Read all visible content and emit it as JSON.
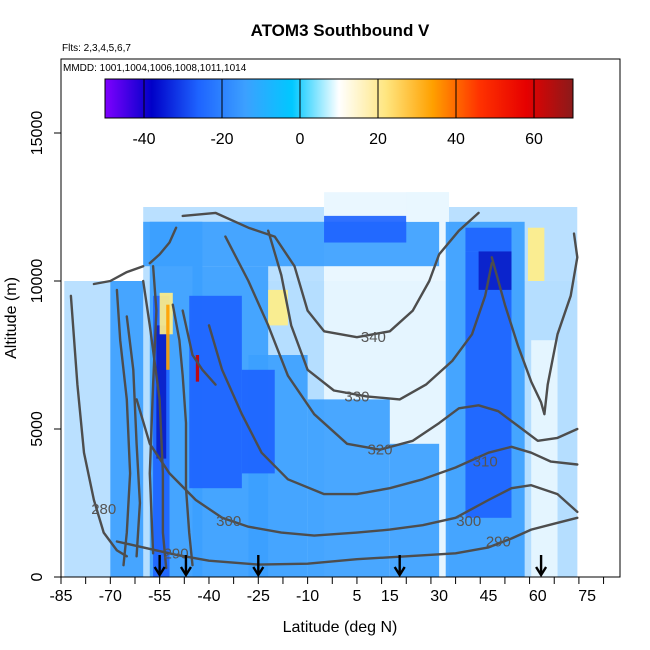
{
  "chart_data": {
    "type": "heatmap",
    "title": "ATOM3 Southbound V",
    "subtitle_lines": [
      "Flts: 2,3,4,5,6,7",
      "MMDD: 1001,1004,1006,1008,1011,1014"
    ],
    "xlabel": "Latitude (deg N)",
    "ylabel": "Altitude (m)",
    "xlim": [
      -85,
      85
    ],
    "ylim": [
      0,
      17500
    ],
    "x_ticks": [
      -85,
      -70,
      -55,
      -40,
      -25,
      -10,
      5,
      15,
      30,
      45,
      60,
      75
    ],
    "y_ticks": [
      0,
      5000,
      10000,
      15000
    ],
    "colorbar": {
      "range": [
        -50,
        70
      ],
      "ticks": [
        -40,
        -20,
        0,
        20,
        40,
        60
      ],
      "colors": [
        "#7f00ff",
        "#0000c8",
        "#1e64ff",
        "#3ca0ff",
        "#00c8ff",
        "#ffffff",
        "#ffe680",
        "#ffa000",
        "#ff3200",
        "#e60000",
        "#8b1a1a"
      ]
    },
    "contour_labels": [
      {
        "text": "340",
        "x": 10,
        "y": 8100
      },
      {
        "text": "330",
        "x": 5,
        "y": 6100
      },
      {
        "text": "320",
        "x": 12,
        "y": 4300
      },
      {
        "text": "310",
        "x": 44,
        "y": 3900
      },
      {
        "text": "300",
        "x": 39,
        "y": 1900
      },
      {
        "text": "290",
        "x": 48,
        "y": 1200
      },
      {
        "text": "280",
        "x": -72,
        "y": 2300
      },
      {
        "text": "300",
        "x": -34,
        "y": 1900
      },
      {
        "text": "290",
        "x": -50,
        "y": 800
      }
    ],
    "flight_markers_lat": [
      -55,
      -47,
      -25,
      18,
      61
    ],
    "contours": [
      {
        "label": "280",
        "points": [
          [
            -82,
            9500
          ],
          [
            -80,
            6500
          ],
          [
            -78,
            4200
          ],
          [
            -75,
            2600
          ],
          [
            -72,
            1500
          ],
          [
            -68,
            900
          ],
          [
            -65,
            700
          ]
        ]
      },
      {
        "label": "290",
        "points": [
          [
            -68,
            1200
          ],
          [
            -60,
            1000
          ],
          [
            -50,
            750
          ],
          [
            -40,
            550
          ],
          [
            -25,
            420
          ],
          [
            -10,
            450
          ],
          [
            5,
            600
          ],
          [
            20,
            700
          ],
          [
            35,
            800
          ],
          [
            45,
            1000
          ],
          [
            52,
            1300
          ],
          [
            58,
            1600
          ],
          [
            65,
            1800
          ],
          [
            72,
            2000
          ]
        ]
      },
      {
        "label": "300",
        "points": [
          [
            -62,
            6000
          ],
          [
            -58,
            4500
          ],
          [
            -52,
            3500
          ],
          [
            -44,
            2600
          ],
          [
            -36,
            2000
          ],
          [
            -28,
            1700
          ],
          [
            -18,
            1500
          ],
          [
            -8,
            1400
          ],
          [
            5,
            1500
          ],
          [
            15,
            1600
          ],
          [
            25,
            1750
          ],
          [
            35,
            2000
          ],
          [
            45,
            2600
          ],
          [
            52,
            3000
          ],
          [
            58,
            3100
          ],
          [
            66,
            2800
          ],
          [
            72,
            2200
          ]
        ]
      },
      {
        "label": "310",
        "points": [
          [
            -40,
            8500
          ],
          [
            -36,
            7000
          ],
          [
            -30,
            5500
          ],
          [
            -24,
            4200
          ],
          [
            -16,
            3300
          ],
          [
            -5,
            2800
          ],
          [
            5,
            2800
          ],
          [
            15,
            3000
          ],
          [
            25,
            3300
          ],
          [
            35,
            3700
          ],
          [
            45,
            4200
          ],
          [
            52,
            4400
          ],
          [
            58,
            4200
          ],
          [
            64,
            3900
          ],
          [
            72,
            3800
          ]
        ]
      },
      {
        "label": "320",
        "points": [
          [
            -35,
            11500
          ],
          [
            -28,
            10000
          ],
          [
            -22,
            8500
          ],
          [
            -16,
            6800
          ],
          [
            -8,
            5500
          ],
          [
            2,
            4500
          ],
          [
            12,
            4300
          ],
          [
            22,
            4600
          ],
          [
            30,
            5200
          ],
          [
            36,
            5700
          ],
          [
            42,
            5800
          ],
          [
            48,
            5600
          ],
          [
            54,
            5100
          ],
          [
            60,
            4600
          ],
          [
            66,
            4700
          ],
          [
            72,
            5000
          ]
        ]
      },
      {
        "label": "330",
        "points": [
          [
            -22,
            11700
          ],
          [
            -18,
            10200
          ],
          [
            -15,
            8500
          ],
          [
            -10,
            7000
          ],
          [
            -2,
            6300
          ],
          [
            8,
            6100
          ],
          [
            18,
            6000
          ],
          [
            26,
            6500
          ],
          [
            34,
            7300
          ],
          [
            40,
            8200
          ],
          [
            44,
            9500
          ],
          [
            46,
            10600
          ]
        ]
      },
      {
        "label": "340",
        "points": [
          [
            -48,
            12200
          ],
          [
            -38,
            12300
          ],
          [
            -28,
            11800
          ],
          [
            -20,
            11500
          ],
          [
            -14,
            10500
          ],
          [
            -10,
            9000
          ],
          [
            -5,
            8300
          ],
          [
            5,
            8100
          ],
          [
            15,
            8300
          ],
          [
            22,
            9000
          ],
          [
            27,
            10000
          ],
          [
            30,
            10900
          ],
          [
            36,
            11700
          ],
          [
            42,
            12300
          ]
        ]
      },
      {
        "label": "",
        "points": [
          [
            46,
            10800
          ],
          [
            50,
            9200
          ],
          [
            54,
            7800
          ],
          [
            58,
            6600
          ],
          [
            61,
            5900
          ],
          [
            62,
            5500
          ],
          [
            63,
            6500
          ],
          [
            66,
            8200
          ],
          [
            70,
            9500
          ],
          [
            72,
            10800
          ],
          [
            71,
            11600
          ]
        ]
      },
      {
        "label": "",
        "points": [
          [
            -60,
            10000
          ],
          [
            -58,
            8500
          ],
          [
            -55,
            6000
          ],
          [
            -54,
            3500
          ],
          [
            -54,
            1500
          ],
          [
            -53,
            300
          ]
        ]
      },
      {
        "label": "",
        "points": [
          [
            -57,
            10500
          ],
          [
            -56,
            9000
          ],
          [
            -57,
            6500
          ],
          [
            -58,
            3500
          ],
          [
            -57,
            800
          ]
        ]
      },
      {
        "label": "",
        "points": [
          [
            -51,
            9200
          ],
          [
            -49,
            8000
          ],
          [
            -48,
            6800
          ],
          [
            -47,
            5200
          ],
          [
            -47,
            3000
          ],
          [
            -46,
            1500
          ],
          [
            -45,
            400
          ]
        ]
      },
      {
        "label": "",
        "points": [
          [
            -68,
            9700
          ],
          [
            -67,
            8000
          ],
          [
            -65,
            6000
          ],
          [
            -64,
            3500
          ],
          [
            -65,
            1500
          ],
          [
            -66,
            400
          ]
        ]
      },
      {
        "label": "",
        "points": [
          [
            -65,
            8800
          ],
          [
            -63,
            7000
          ],
          [
            -62,
            4500
          ],
          [
            -61,
            2500
          ],
          [
            -62,
            700
          ]
        ]
      },
      {
        "label": "",
        "points": [
          [
            -48,
            9000
          ],
          [
            -45,
            7500
          ],
          [
            -42,
            7000
          ],
          [
            -38,
            6500
          ]
        ]
      },
      {
        "label": "",
        "points": [
          [
            -50,
            11800
          ],
          [
            -52,
            11300
          ],
          [
            -55,
            10900
          ],
          [
            -58,
            10600
          ]
        ]
      },
      {
        "label": "",
        "points": [
          [
            -75,
            9900
          ],
          [
            -70,
            10000
          ],
          [
            -65,
            10300
          ],
          [
            -60,
            10500
          ]
        ]
      }
    ]
  },
  "colors": {
    "field_light": "#b4ddff",
    "field_mid": "#3ca0ff",
    "field_deep": "#1e64ff",
    "field_darkest": "#0a1ec8",
    "field_pale": "#e8f6ff",
    "field_yellow": "#ffee88",
    "field_orange": "#ffa000",
    "field_red": "#cc0000",
    "contour": "#4d4d4d",
    "label_text": "#555555"
  }
}
